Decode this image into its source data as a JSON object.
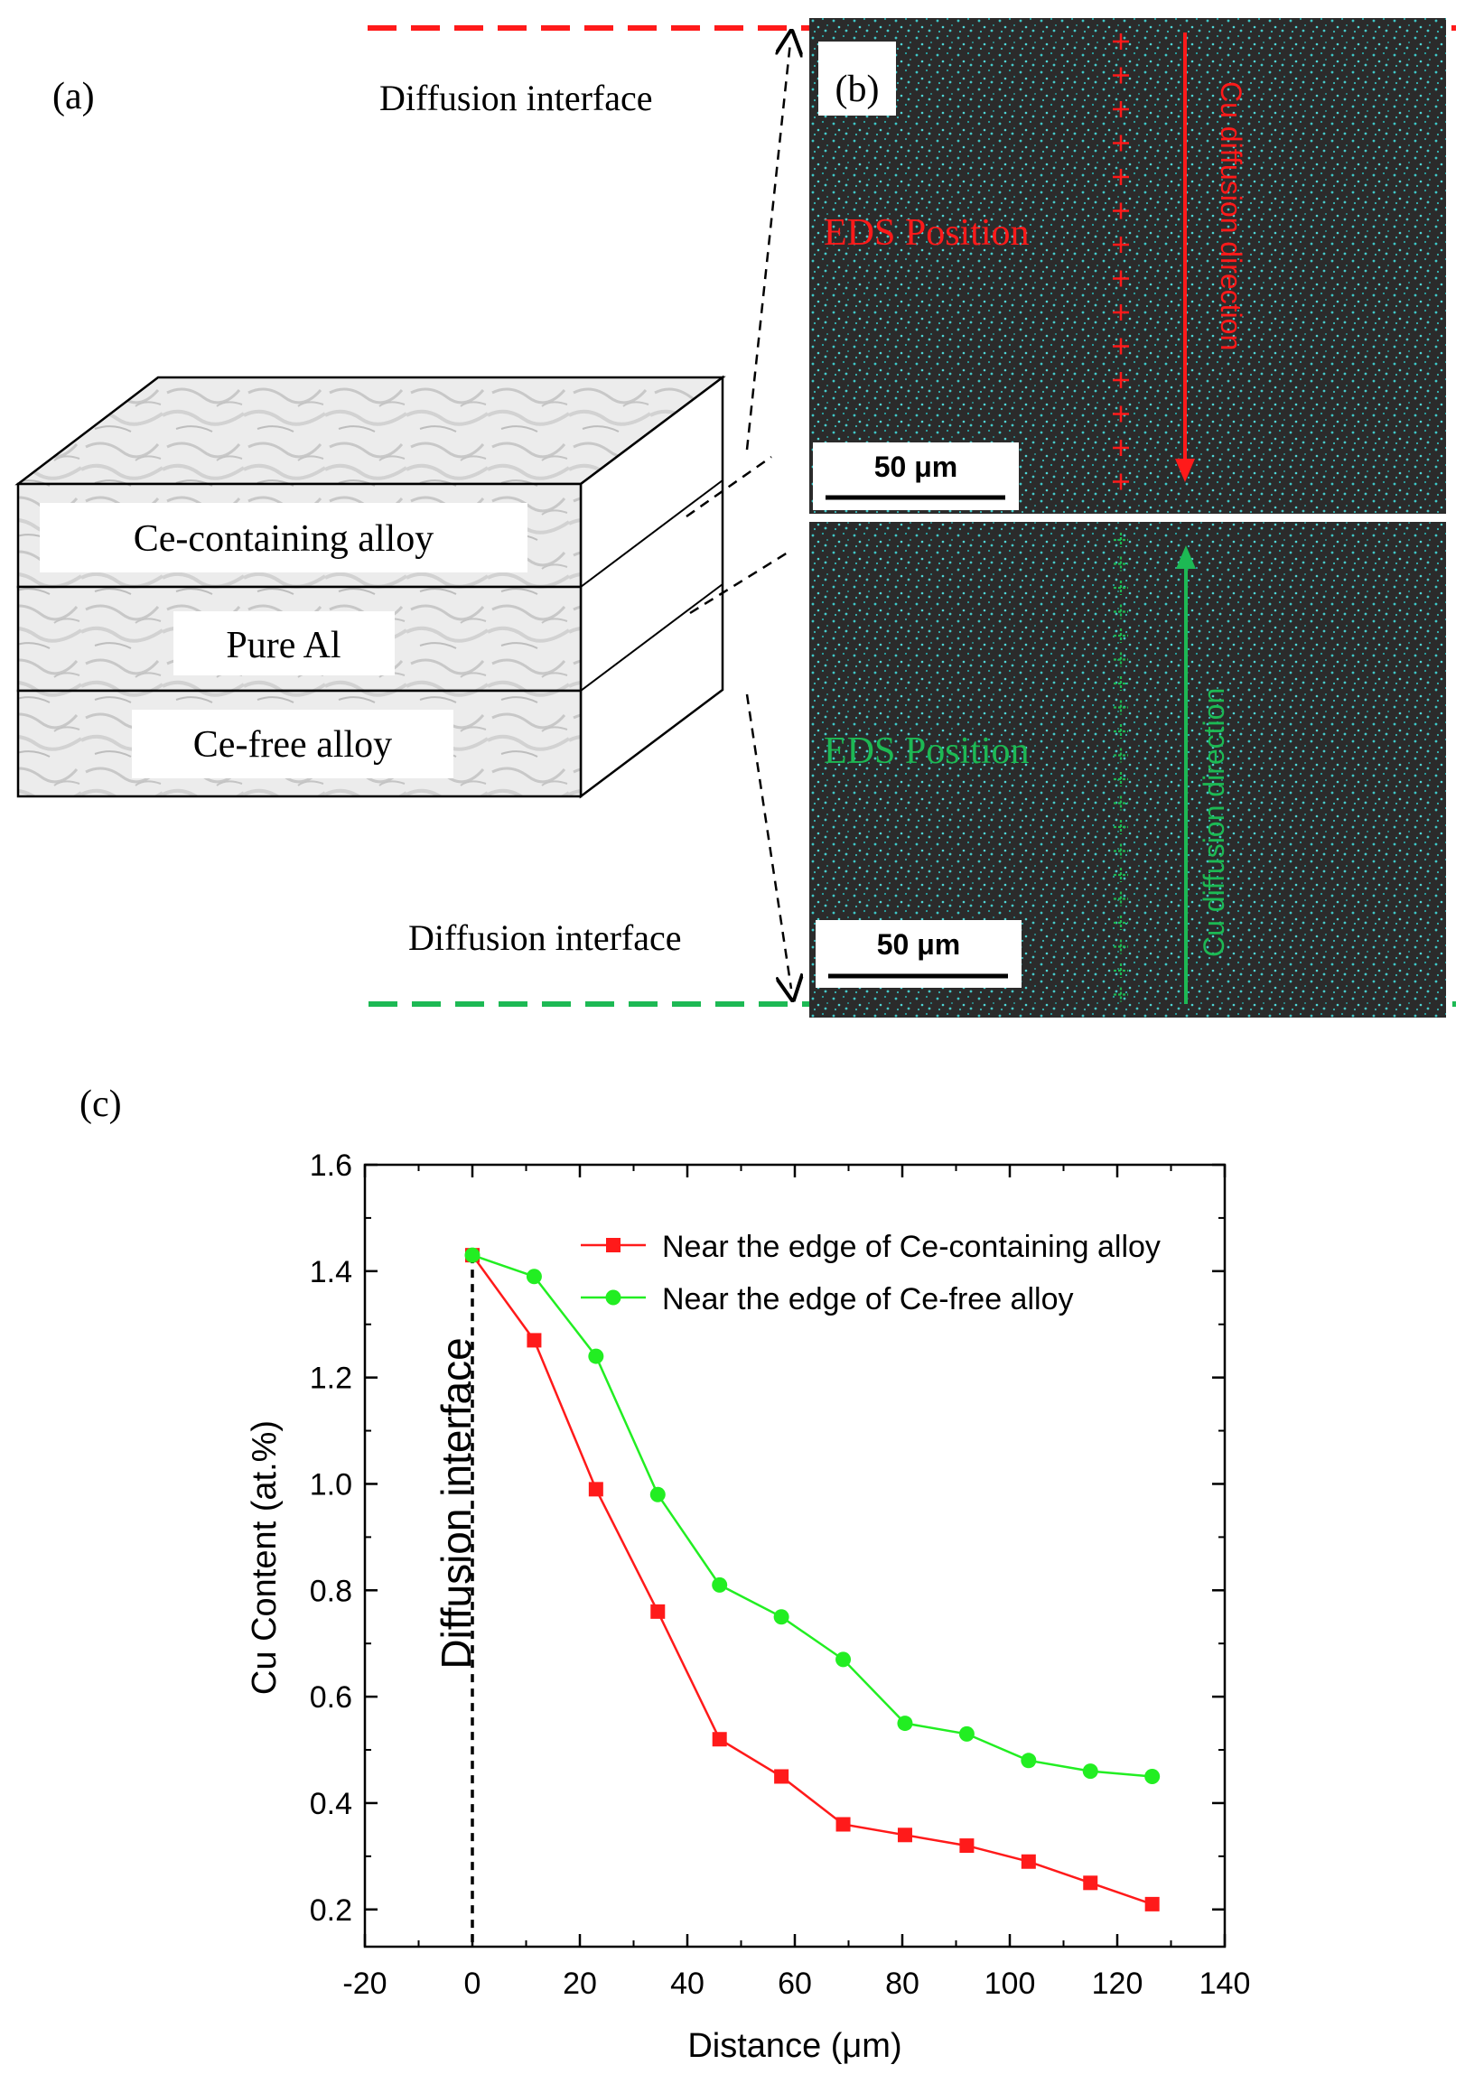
{
  "panel_labels": {
    "a": "(a)",
    "b": "(b)",
    "c": "(c)"
  },
  "schematic": {
    "diffusion_interface_top": "Diffusion interface",
    "diffusion_interface_bottom": "Diffusion interface",
    "layers": [
      "Ce-containing alloy",
      "Pure Al",
      "Ce-free alloy"
    ]
  },
  "micrograph": {
    "top": {
      "eds_label": "EDS Position",
      "direction_label": "Cu diffusion direction",
      "scale_bar": "50 μm",
      "accent": "#ff1a1a"
    },
    "bottom": {
      "eds_label": "EDS Position",
      "direction_label": "Cu diffusion direction",
      "scale_bar": "50 μm",
      "accent": "#1db954"
    }
  },
  "colors": {
    "red": "#ff1a1a",
    "green": "#1db954",
    "interface_red": "#ff1a1a",
    "interface_green": "#1db954"
  },
  "chart_data": {
    "type": "line",
    "title": "",
    "xlabel": "Distance (μm)",
    "ylabel": "Cu Content (at.%)",
    "xlim": [
      -20,
      140
    ],
    "ylim": [
      0.13,
      1.6
    ],
    "xticks": [
      -20,
      0,
      20,
      40,
      60,
      80,
      100,
      120,
      140
    ],
    "xtick_labels": [
      "-20",
      "0",
      "20",
      "40",
      "60",
      "80",
      "100",
      "120",
      "140"
    ],
    "yticks": [
      0.2,
      0.4,
      0.6,
      0.8,
      1.0,
      1.2,
      1.4,
      1.6
    ],
    "ytick_labels": [
      "0.2",
      "0.4",
      "0.6",
      "0.8",
      "1.0",
      "1.2",
      "1.4",
      "1.6"
    ],
    "annotation": {
      "text": "Diffusion interface",
      "x": 0
    },
    "legend_position": "top-right",
    "series": [
      {
        "name": "Near the edge of Ce-containing alloy",
        "color": "#ff1a1a",
        "marker": "square",
        "x": [
          0,
          11.5,
          23,
          34.5,
          46,
          57.5,
          69,
          80.5,
          92,
          103.5,
          115,
          126.5
        ],
        "y": [
          1.43,
          1.27,
          0.99,
          0.76,
          0.52,
          0.45,
          0.36,
          0.34,
          0.32,
          0.29,
          0.25,
          0.21
        ]
      },
      {
        "name": "Near the edge of Ce-free alloy",
        "color": "#22ee22",
        "marker": "circle",
        "x": [
          0,
          11.5,
          23,
          34.5,
          46,
          57.5,
          69,
          80.5,
          92,
          103.5,
          115,
          126.5
        ],
        "y": [
          1.43,
          1.39,
          1.24,
          0.98,
          0.81,
          0.75,
          0.67,
          0.55,
          0.53,
          0.48,
          0.46,
          0.45
        ]
      }
    ]
  }
}
